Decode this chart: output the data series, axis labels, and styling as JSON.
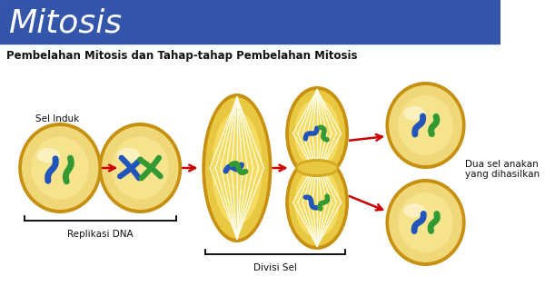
{
  "title": "Mitosis",
  "subtitle": "Pembelahan Mitosis dan Tahap-tahap Pembelahan Mitosis",
  "title_bg_color": "#3355aa",
  "title_text_color": "#ffffff",
  "bg_color": "#ffffff",
  "cell_fill_light": "#f5e8a0",
  "cell_fill_mid": "#e8d070",
  "cell_edge": "#c89010",
  "arrow_color": "#cc0000",
  "label_replikasi": "Replikasi DNA",
  "label_divisi": "Divisi Sel",
  "label_sel_induk": "Sel Induk",
  "label_dua_sel": "Dua sel anakan\nyang dihasilkan",
  "spindle_color": "#ffffff",
  "chr_blue": "#2255bb",
  "chr_green": "#339933"
}
